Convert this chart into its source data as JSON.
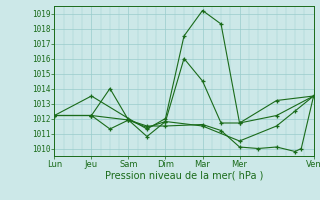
{
  "xlabel": "Pression niveau de la mer( hPa )",
  "bg_color": "#cce8e8",
  "grid_color": "#99cccc",
  "line_color": "#1a6b1a",
  "ylim": [
    1009.5,
    1019.5
  ],
  "xlim": [
    0,
    168
  ],
  "day_labels": [
    "Lun",
    "Jeu",
    "Sam",
    "Dim",
    "Mar",
    "Mer",
    "Ven"
  ],
  "day_positions": [
    0,
    24,
    48,
    72,
    96,
    120,
    168
  ],
  "yticks": [
    1010,
    1011,
    1012,
    1013,
    1014,
    1015,
    1016,
    1017,
    1018,
    1019
  ],
  "series1_x": [
    0,
    24,
    48,
    60,
    72,
    84,
    96,
    108,
    120,
    144,
    168
  ],
  "series1_y": [
    1012.2,
    1013.5,
    1012.0,
    1011.3,
    1012.0,
    1017.5,
    1019.2,
    1018.3,
    1011.7,
    1012.2,
    1013.5
  ],
  "series2_x": [
    0,
    24,
    36,
    48,
    60,
    72,
    84,
    96,
    108,
    120,
    144,
    168
  ],
  "series2_y": [
    1012.2,
    1012.2,
    1014.0,
    1011.9,
    1010.8,
    1011.8,
    1016.0,
    1014.5,
    1011.7,
    1011.7,
    1013.2,
    1013.5
  ],
  "series3_x": [
    0,
    24,
    36,
    48,
    60,
    72,
    96,
    120,
    144,
    156,
    168
  ],
  "series3_y": [
    1012.2,
    1012.2,
    1011.3,
    1011.9,
    1011.4,
    1011.8,
    1011.5,
    1010.5,
    1011.5,
    1012.5,
    1013.5
  ],
  "series4_x": [
    0,
    24,
    48,
    60,
    72,
    96,
    108,
    120,
    132,
    144,
    156,
    160,
    168
  ],
  "series4_y": [
    1012.2,
    1012.2,
    1011.9,
    1011.5,
    1011.5,
    1011.6,
    1011.2,
    1010.1,
    1010.0,
    1010.1,
    1009.8,
    1010.0,
    1013.5
  ]
}
